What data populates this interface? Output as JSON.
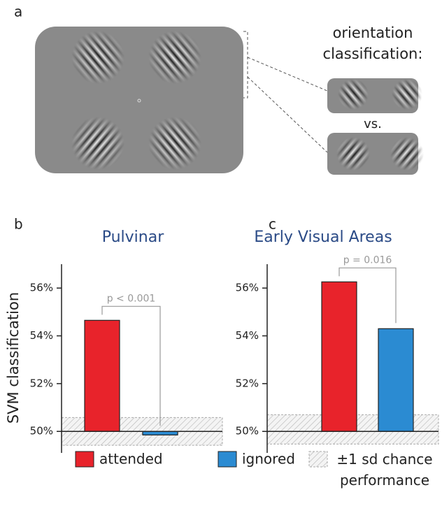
{
  "panel_a": {
    "label": "a",
    "heading": "orientation classification:",
    "vs": "vs."
  },
  "legend": {
    "chance_label": "±1 sd chance performance"
  },
  "chart_data": [
    {
      "type": "bar",
      "panel": "b",
      "title": "Pulvinar",
      "y_label": "SVM classification",
      "ylim": [
        49.1,
        57.0
      ],
      "yticks": [
        {
          "value": 50,
          "label": "50%"
        },
        {
          "value": 52,
          "label": "52%"
        },
        {
          "value": 54,
          "label": "54%"
        },
        {
          "value": 56,
          "label": "56%"
        }
      ],
      "baseline": 50,
      "series": [
        {
          "name": "attended",
          "color": "#e8232b",
          "values": [
            54.65
          ]
        },
        {
          "name": "ignored",
          "color": "#2b8bd2",
          "values": [
            49.85
          ]
        }
      ],
      "chance_band": [
        49.42,
        50.58
      ],
      "annotation": "p < 0.001"
    },
    {
      "type": "bar",
      "panel": "c",
      "title": "Early Visual Areas",
      "ylim": [
        49.1,
        57.0
      ],
      "yticks": [
        {
          "value": 50,
          "label": "50%"
        },
        {
          "value": 52,
          "label": "52%"
        },
        {
          "value": 54,
          "label": "54%"
        },
        {
          "value": 56,
          "label": "56%"
        }
      ],
      "baseline": 50,
      "series": [
        {
          "color": "#e8232b",
          "values": [
            56.26
          ]
        },
        {
          "color": "#2b8bd2",
          "values": [
            54.3
          ]
        }
      ],
      "chance_band": [
        49.47,
        50.7
      ],
      "annotation": "p = 0.016"
    }
  ]
}
